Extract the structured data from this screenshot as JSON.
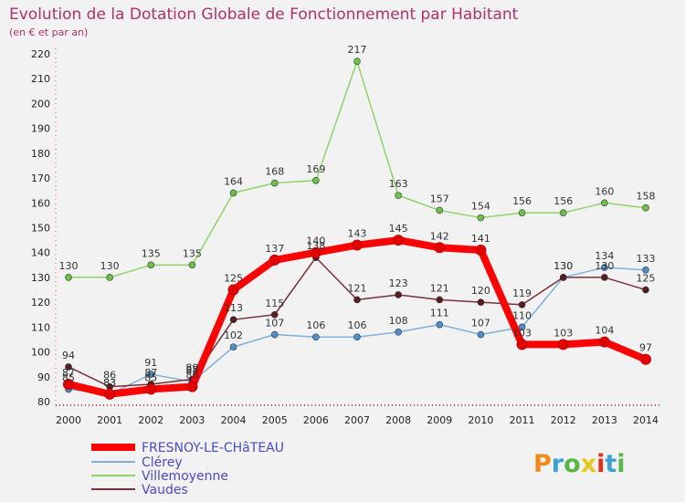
{
  "chart_data": {
    "type": "line",
    "title": "Evolution de la Dotation Globale de Fonctionnement par Habitant",
    "subtitle": "(en € et par an)",
    "xlabel": "",
    "ylabel": "",
    "ylim": [
      80,
      220
    ],
    "yticks": [
      80,
      90,
      100,
      110,
      120,
      130,
      140,
      150,
      160,
      170,
      180,
      190,
      200,
      210,
      220
    ],
    "categories": [
      "2000",
      "2001",
      "2002",
      "2003",
      "2004",
      "2005",
      "2006",
      "2007",
      "2008",
      "2009",
      "2010",
      "2011",
      "2012",
      "2013",
      "2014"
    ],
    "grid": false,
    "legend_position": "bottom-left",
    "series": [
      {
        "name": "Villemoyenne",
        "color": "#8fd46a",
        "marker": "#6ec24a",
        "values": [
          130,
          130,
          135,
          135,
          164,
          168,
          169,
          217,
          163,
          157,
          154,
          156,
          156,
          160,
          158
        ]
      },
      {
        "name": "Clérey",
        "color": "#7fb0dd",
        "marker": "#4c8fce",
        "values": [
          85,
          83,
          91,
          88,
          102,
          107,
          106,
          106,
          108,
          111,
          107,
          110,
          130,
          134,
          133
        ]
      },
      {
        "name": "Vaudes",
        "color": "#7a3038",
        "marker": "#5a1c22",
        "values": [
          94,
          86,
          87,
          89,
          113,
          115,
          138,
          121,
          123,
          121,
          120,
          119,
          130,
          130,
          125
        ]
      },
      {
        "name": "FRESNOY-LE-CHâTEAU",
        "color": "#ff0000",
        "marker": "#e00000",
        "values": [
          87,
          83,
          85,
          86,
          125,
          137,
          140,
          143,
          145,
          142,
          141,
          103,
          103,
          104,
          97
        ]
      }
    ],
    "legend": [
      "FRESNOY-LE-CHâTEAU",
      "Clérey",
      "Villemoyenne",
      "Vaudes"
    ]
  },
  "logo": {
    "text": "Proxiti"
  }
}
